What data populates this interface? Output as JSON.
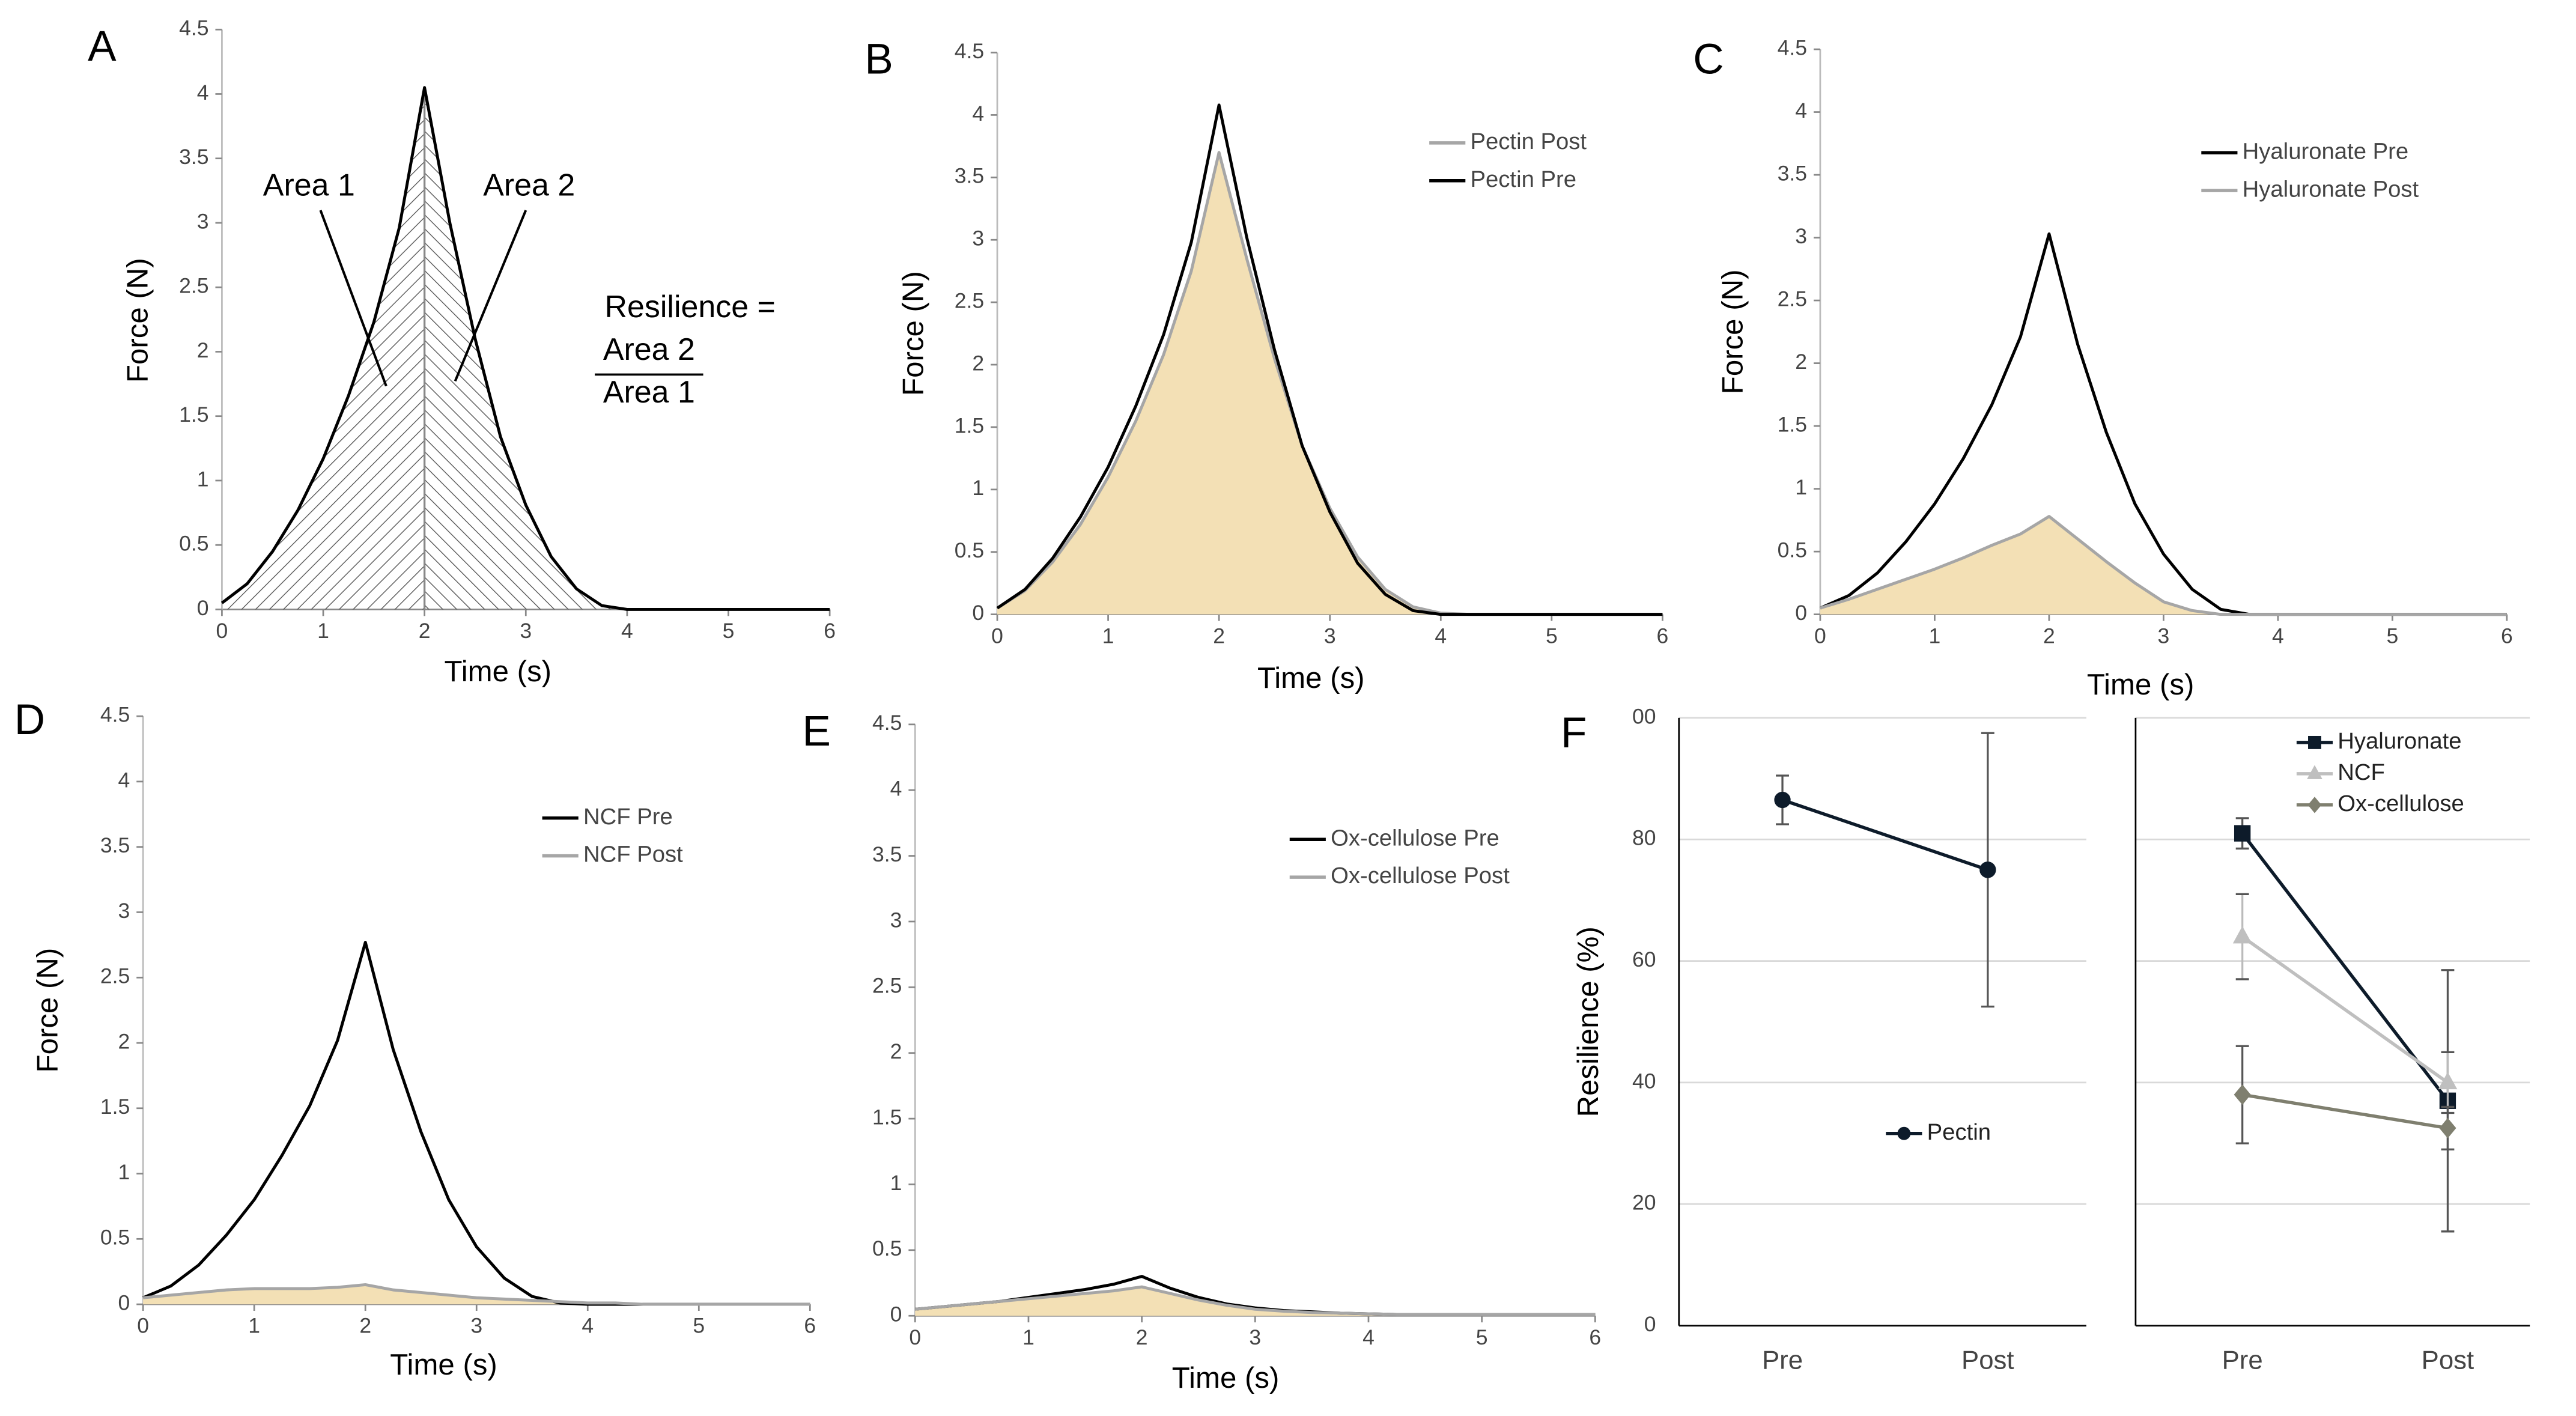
{
  "chart_data": [
    {
      "type": "line",
      "title": "A",
      "xlabel": "Time (s)",
      "ylabel": "Force (N)",
      "x": [
        0,
        0.25,
        0.5,
        0.75,
        1,
        1.25,
        1.5,
        1.75,
        2,
        2.25,
        2.5,
        2.75,
        3,
        3.25,
        3.5,
        3.75,
        4,
        4.25,
        4.5,
        4.75,
        5,
        5.25,
        5.5,
        5.75,
        6
      ],
      "xlim": [
        0,
        6
      ],
      "xticks": [
        0,
        1,
        2,
        3,
        4,
        5,
        6
      ],
      "ylim": [
        0,
        4.5
      ],
      "yticks": [
        0,
        0.5,
        1,
        1.5,
        2,
        2.5,
        3,
        3.5,
        4,
        4.5
      ],
      "fill": "hatch",
      "annotations": [
        "Area 1",
        "Area 2",
        "Resilience =",
        "Area 2",
        "Area 1"
      ],
      "series": [
        {
          "color": "#000000",
          "values": [
            0.05,
            0.2,
            0.45,
            0.77,
            1.17,
            1.66,
            2.23,
            2.96,
            4.05,
            3.0,
            2.1,
            1.34,
            0.81,
            0.41,
            0.16,
            0.03,
            0,
            0,
            0,
            0,
            0,
            0,
            0,
            0,
            0
          ]
        }
      ]
    },
    {
      "type": "line",
      "title": "B",
      "xlabel": "Time (s)",
      "ylabel": "Force (N)",
      "x": [
        0,
        0.25,
        0.5,
        0.75,
        1,
        1.25,
        1.5,
        1.75,
        2,
        2.25,
        2.5,
        2.75,
        3,
        3.25,
        3.5,
        3.75,
        4,
        4.25,
        4.5,
        4.75,
        5,
        5.25,
        5.5,
        5.75,
        6
      ],
      "xlim": [
        0,
        6
      ],
      "xticks": [
        0,
        1,
        2,
        3,
        4,
        5,
        6
      ],
      "ylim": [
        0,
        4.5
      ],
      "yticks": [
        0,
        0.5,
        1,
        1.5,
        2,
        2.5,
        3,
        3.5,
        4,
        4.5
      ],
      "series": [
        {
          "name": "Pectin Post",
          "color": "#a6a6a6",
          "fill": "#f3e0b5",
          "values": [
            0.05,
            0.19,
            0.42,
            0.72,
            1.1,
            1.55,
            2.08,
            2.75,
            3.7,
            2.85,
            2.05,
            1.35,
            0.85,
            0.46,
            0.2,
            0.06,
            0.01,
            0,
            0,
            0,
            0,
            0,
            0,
            0,
            0
          ]
        },
        {
          "name": "Pectin Pre",
          "color": "#000000",
          "values": [
            0.05,
            0.2,
            0.45,
            0.78,
            1.18,
            1.67,
            2.24,
            2.98,
            4.08,
            3.02,
            2.12,
            1.35,
            0.82,
            0.41,
            0.16,
            0.03,
            0,
            0,
            0,
            0,
            0,
            0,
            0,
            0,
            0
          ]
        }
      ]
    },
    {
      "type": "line",
      "title": "C",
      "xlabel": "Time (s)",
      "ylabel": "Force (N)",
      "x": [
        0,
        0.25,
        0.5,
        0.75,
        1,
        1.25,
        1.5,
        1.75,
        2,
        2.25,
        2.5,
        2.75,
        3,
        3.25,
        3.5,
        3.75,
        4,
        4.25,
        4.5,
        4.75,
        5,
        5.25,
        5.5,
        5.75,
        6
      ],
      "xlim": [
        0,
        6
      ],
      "xticks": [
        0,
        1,
        2,
        3,
        4,
        5,
        6
      ],
      "ylim": [
        0,
        4.5
      ],
      "yticks": [
        0,
        0.5,
        1,
        1.5,
        2,
        2.5,
        3,
        3.5,
        4,
        4.5
      ],
      "series": [
        {
          "name": "Hyaluronate Pre",
          "color": "#000000",
          "values": [
            0.05,
            0.15,
            0.33,
            0.58,
            0.88,
            1.24,
            1.67,
            2.21,
            3.03,
            2.15,
            1.45,
            0.88,
            0.48,
            0.2,
            0.04,
            0,
            0,
            0,
            0,
            0,
            0,
            0,
            0,
            0,
            0
          ]
        },
        {
          "name": "Hyaluronate Post",
          "color": "#a6a6a6",
          "fill": "#f3e0b5",
          "values": [
            0.05,
            0.12,
            0.2,
            0.28,
            0.36,
            0.45,
            0.55,
            0.64,
            0.78,
            0.6,
            0.42,
            0.25,
            0.1,
            0.03,
            0,
            0,
            0,
            0,
            0,
            0,
            0,
            0,
            0,
            0,
            0
          ]
        }
      ]
    },
    {
      "type": "line",
      "title": "D",
      "xlabel": "Time (s)",
      "ylabel": "Force (N)",
      "x": [
        0,
        0.25,
        0.5,
        0.75,
        1,
        1.25,
        1.5,
        1.75,
        2,
        2.25,
        2.5,
        2.75,
        3,
        3.25,
        3.5,
        3.75,
        4,
        4.25,
        4.5,
        4.75,
        5,
        5.25,
        5.5,
        5.75,
        6
      ],
      "xlim": [
        0,
        6
      ],
      "xticks": [
        0,
        1,
        2,
        3,
        4,
        5,
        6
      ],
      "ylim": [
        0,
        4.5
      ],
      "yticks": [
        0,
        0.5,
        1,
        1.5,
        2,
        2.5,
        3,
        3.5,
        4,
        4.5
      ],
      "series": [
        {
          "name": "NCF Pre",
          "color": "#000000",
          "values": [
            0.05,
            0.14,
            0.3,
            0.53,
            0.8,
            1.14,
            1.52,
            2.02,
            2.77,
            1.95,
            1.32,
            0.8,
            0.44,
            0.2,
            0.06,
            0.01,
            0,
            0,
            0,
            0,
            0,
            0,
            0,
            0,
            0
          ]
        },
        {
          "name": "NCF Post",
          "color": "#a6a6a6",
          "fill": "#f3e0b5",
          "values": [
            0.05,
            0.07,
            0.09,
            0.11,
            0.12,
            0.12,
            0.12,
            0.13,
            0.15,
            0.11,
            0.09,
            0.07,
            0.05,
            0.04,
            0.03,
            0.02,
            0.01,
            0.01,
            0,
            0,
            0,
            0,
            0,
            0,
            0
          ]
        }
      ]
    },
    {
      "type": "line",
      "title": "E",
      "xlabel": "Time (s)",
      "ylabel": "Force (N)",
      "x": [
        0,
        0.25,
        0.5,
        0.75,
        1,
        1.25,
        1.5,
        1.75,
        2,
        2.25,
        2.5,
        2.75,
        3,
        3.25,
        3.5,
        3.75,
        4,
        4.25,
        4.5,
        4.75,
        5,
        5.25,
        5.5,
        5.75,
        6
      ],
      "xlim": [
        0,
        6
      ],
      "xticks": [
        0,
        1,
        2,
        3,
        4,
        5,
        6
      ],
      "ylim": [
        0,
        4.5
      ],
      "yticks": [
        0,
        0.5,
        1,
        1.5,
        2,
        2.5,
        3,
        3.5,
        4,
        4.5
      ],
      "series": [
        {
          "name": "Ox-cellulose Pre",
          "color": "#000000",
          "values": [
            0.05,
            0.07,
            0.09,
            0.11,
            0.14,
            0.17,
            0.2,
            0.24,
            0.3,
            0.21,
            0.14,
            0.09,
            0.06,
            0.04,
            0.03,
            0.02,
            0.015,
            0.01,
            0.01,
            0.01,
            0.01,
            0.01,
            0.01,
            0.01,
            0.01
          ]
        },
        {
          "name": "Ox-cellulose Post",
          "color": "#a6a6a6",
          "fill": "#f3e0b5",
          "values": [
            0.05,
            0.07,
            0.09,
            0.11,
            0.13,
            0.15,
            0.17,
            0.19,
            0.22,
            0.17,
            0.12,
            0.08,
            0.05,
            0.035,
            0.025,
            0.02,
            0.015,
            0.01,
            0.01,
            0.01,
            0.01,
            0.01,
            0.01,
            0.01,
            0.01
          ]
        }
      ]
    },
    {
      "type": "errorline",
      "title": "F",
      "ylabel": "Resilience (%)",
      "ylim": [
        0,
        100
      ],
      "yticks": [
        0,
        20,
        40,
        60,
        80,
        {
          "value": 100,
          "label": "00"
        }
      ],
      "grid": true,
      "panels": [
        {
          "categories": [
            "Pre",
            "Post"
          ],
          "legend": "lower center",
          "series": [
            {
              "name": "Pectin",
              "color": "#0d1b2a",
              "marker": "circle",
              "values": [
                86.5,
                75
              ],
              "errors": [
                4,
                22.5
              ]
            }
          ]
        },
        {
          "categories": [
            "Pre",
            "Post"
          ],
          "legend": "upper right",
          "series": [
            {
              "name": "Hyaluronate",
              "color": "#0d1b2a",
              "marker": "square",
              "values": [
                81,
                37
              ],
              "errors": [
                2.5,
                21.5
              ]
            },
            {
              "name": "NCF",
              "color": "#bfbfbf",
              "marker": "triangle",
              "values": [
                64,
                40
              ],
              "errors": [
                7,
                5
              ]
            },
            {
              "name": "Ox-cellulose",
              "color": "#7f7f6f",
              "marker": "diamond",
              "values": [
                38,
                32.5
              ],
              "errors": [
                8,
                3.5
              ]
            }
          ]
        }
      ]
    }
  ]
}
